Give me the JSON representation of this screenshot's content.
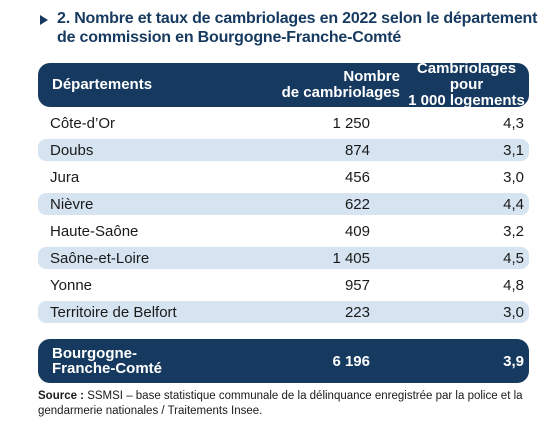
{
  "title": "2. Nombre et taux de cambriolages en 2022 selon le département de commission en Bourgogne-Franche-Comté",
  "table": {
    "headers": {
      "departement": "Départements",
      "nombre": "Nombre\nde cambriolages",
      "taux": "Cambriolages pour\n1 000 logements"
    },
    "rows": [
      {
        "departement": "Côte-d’Or",
        "nombre": "1 250",
        "taux": "4,3"
      },
      {
        "departement": "Doubs",
        "nombre": "874",
        "taux": "3,1"
      },
      {
        "departement": "Jura",
        "nombre": "456",
        "taux": "3,0"
      },
      {
        "departement": "Nièvre",
        "nombre": "622",
        "taux": "4,4"
      },
      {
        "departement": "Haute-Saône",
        "nombre": "409",
        "taux": "3,2"
      },
      {
        "departement": "Saône-et-Loire",
        "nombre": "1 405",
        "taux": "4,5"
      },
      {
        "departement": "Yonne",
        "nombre": "957",
        "taux": "4,8"
      },
      {
        "departement": "Territoire de Belfort",
        "nombre": "223",
        "taux": "3,0"
      }
    ],
    "total": {
      "departement": "Bourgogne-\nFranche-Comté",
      "nombre": "6 196",
      "taux": "3,9"
    }
  },
  "source": {
    "label": "Source :",
    "text": " SSMSI – base statistique communale de la délinquance enregistrée par la police et la gendarmerie nationales / Traitements Insee."
  },
  "colors": {
    "header_bg": "#163a5f",
    "alt_row_bg": "#d6e4f1",
    "title": "#163a5f"
  }
}
